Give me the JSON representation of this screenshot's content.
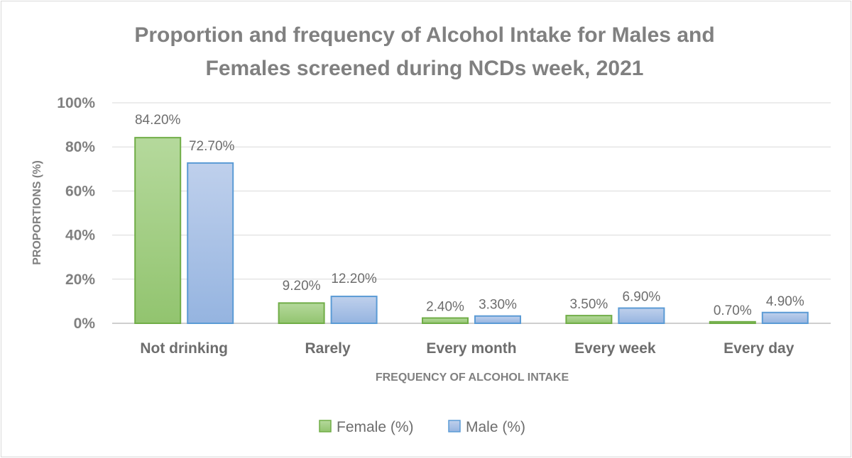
{
  "chart_data": {
    "type": "bar",
    "title_lines": [
      "Proportion and frequency of Alcohol Intake for Males and",
      "Females screened during NCDs week, 2021"
    ],
    "xlabel": "FREQUENCY OF ALCOHOL INTAKE",
    "ylabel": "PROPORTIONS (%)",
    "ylim": [
      0,
      100
    ],
    "yticks": [
      0,
      20,
      40,
      60,
      80,
      100
    ],
    "ytick_labels": [
      "0%",
      "20%",
      "40%",
      "60%",
      "80%",
      "100%"
    ],
    "grid": true,
    "legend_position": "bottom",
    "categories": [
      "Not drinking",
      "Rarely",
      "Every month",
      "Every week",
      "Every day"
    ],
    "series": [
      {
        "name": "Female (%)",
        "color": "#a9d18e",
        "edge_color": "#70ad47",
        "values": [
          84.2,
          9.2,
          2.4,
          3.5,
          0.7
        ],
        "labels": [
          "84.20%",
          "9.20%",
          "2.40%",
          "3.50%",
          "0.70%"
        ]
      },
      {
        "name": "Male (%)",
        "color": "#b4c7e7",
        "edge_color": "#5b9bd5",
        "values": [
          72.7,
          12.2,
          3.3,
          6.9,
          4.9
        ],
        "labels": [
          "72.70%",
          "12.20%",
          "3.30%",
          "6.90%",
          "4.90%"
        ]
      }
    ]
  }
}
